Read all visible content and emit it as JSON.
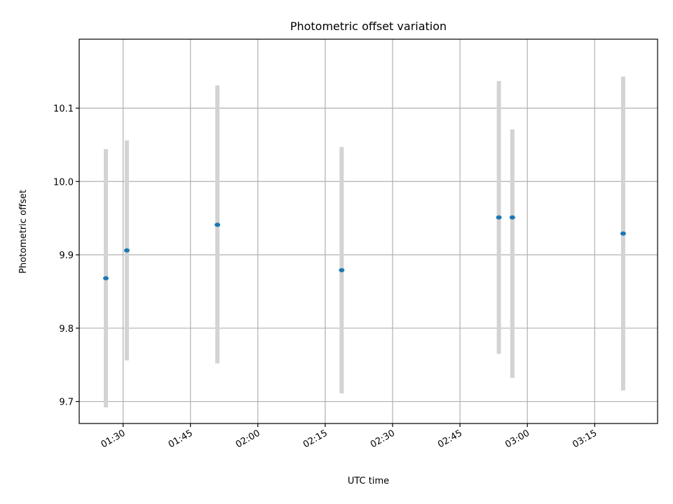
{
  "chart_data": {
    "type": "scatter",
    "title": "Photometric offset variation",
    "xlabel": "UTC time",
    "ylabel": "Photometric offset",
    "x_unit": "time HH:MM",
    "xlim": [
      "01:20:14",
      "03:29:00"
    ],
    "ylim": [
      9.67,
      10.194
    ],
    "x_ticks": [
      "01:30",
      "01:45",
      "02:00",
      "02:15",
      "02:30",
      "02:45",
      "03:00",
      "03:15"
    ],
    "y_ticks": [
      9.7,
      9.8,
      9.9,
      10.0,
      10.1
    ],
    "y_tick_labels": [
      "9.7",
      "9.8",
      "9.9",
      "10.0",
      "10.1"
    ],
    "grid": true,
    "marker_color": "#1f77b4",
    "errorbar_color": "#d3d3d3",
    "points": [
      {
        "x": "01:26:10",
        "y": 9.868,
        "y_low": 9.692,
        "y_high": 10.044
      },
      {
        "x": "01:30:50",
        "y": 9.906,
        "y_low": 9.756,
        "y_high": 10.056
      },
      {
        "x": "01:51:00",
        "y": 9.941,
        "y_low": 9.752,
        "y_high": 10.131
      },
      {
        "x": "02:18:40",
        "y": 9.879,
        "y_low": 9.711,
        "y_high": 10.047
      },
      {
        "x": "02:53:40",
        "y": 9.951,
        "y_low": 9.765,
        "y_high": 10.137
      },
      {
        "x": "02:56:40",
        "y": 9.951,
        "y_low": 9.732,
        "y_high": 10.071
      },
      {
        "x": "03:21:20",
        "y": 9.929,
        "y_low": 9.715,
        "y_high": 10.143
      }
    ]
  }
}
